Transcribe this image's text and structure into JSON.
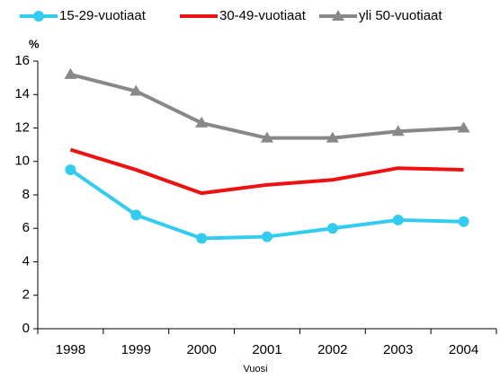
{
  "chart_data": {
    "type": "line",
    "y_label": "%",
    "x_label": "Vuosi",
    "categories": [
      "1998",
      "1999",
      "2000",
      "2001",
      "2002",
      "2003",
      "2004"
    ],
    "series": [
      {
        "name": "15-29-vuotiaat",
        "color": "#33ccee",
        "marker": "circle",
        "values": [
          9.5,
          6.8,
          5.4,
          5.5,
          6.0,
          6.5,
          6.4
        ]
      },
      {
        "name": "30-49-vuotiaat",
        "color": "#ee1111",
        "marker": "none",
        "values": [
          10.7,
          9.5,
          8.1,
          8.6,
          8.9,
          9.6,
          9.5
        ]
      },
      {
        "name": "yli 50-vuotiaat",
        "color": "#888888",
        "marker": "triangle",
        "values": [
          15.2,
          14.2,
          12.3,
          11.4,
          11.4,
          11.8,
          12.0
        ]
      }
    ],
    "ylim": [
      0,
      16
    ],
    "yticks": [
      0,
      2,
      4,
      6,
      8,
      10,
      12,
      14,
      16
    ],
    "grid": false,
    "legend": "top"
  }
}
